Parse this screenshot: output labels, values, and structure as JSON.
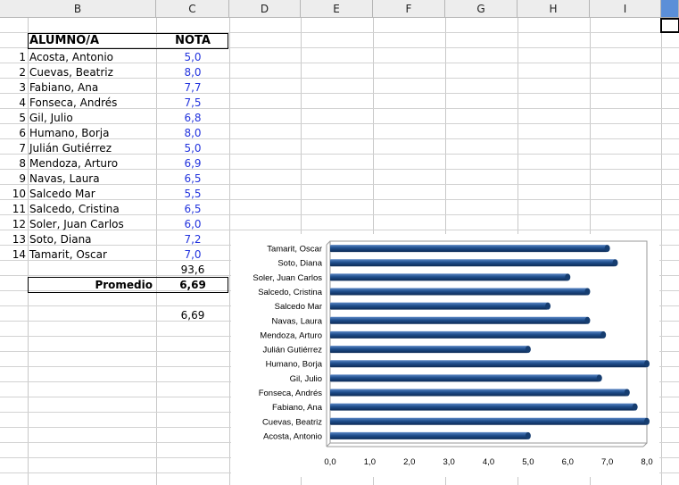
{
  "columns": [
    "B",
    "C",
    "D",
    "E",
    "F",
    "G",
    "H",
    "I"
  ],
  "table": {
    "header_name": "ALUMNO/A",
    "header_grade": "NOTA",
    "rows": [
      {
        "n": "1",
        "name": "Acosta, Antonio",
        "grade": "5,0"
      },
      {
        "n": "2",
        "name": "Cuevas, Beatriz",
        "grade": "8,0"
      },
      {
        "n": "3",
        "name": "Fabiano, Ana",
        "grade": "7,7"
      },
      {
        "n": "4",
        "name": "Fonseca, Andrés",
        "grade": "7,5"
      },
      {
        "n": "5",
        "name": "Gil, Julio",
        "grade": "6,8"
      },
      {
        "n": "6",
        "name": "Humano, Borja",
        "grade": "8,0"
      },
      {
        "n": "7",
        "name": "Julián Gutiérrez",
        "grade": "5,0"
      },
      {
        "n": "8",
        "name": "Mendoza, Arturo",
        "grade": "6,9"
      },
      {
        "n": "9",
        "name": "Navas, Laura",
        "grade": "6,5"
      },
      {
        "n": "10",
        "name": "Salcedo Mar",
        "grade": "5,5"
      },
      {
        "n": "11",
        "name": "Salcedo, Cristina",
        "grade": "6,5"
      },
      {
        "n": "12",
        "name": "Soler, Juan Carlos",
        "grade": "6,0"
      },
      {
        "n": "13",
        "name": "Soto, Diana",
        "grade": "7,2"
      },
      {
        "n": "14",
        "name": "Tamarit, Oscar",
        "grade": "7,0"
      }
    ],
    "sum": "93,6",
    "average_label": "Promedio",
    "average_value": "6,69",
    "extra_value": "6,69"
  },
  "colors": {
    "bar": "#1f4e8c",
    "grade_text": "#2233dd",
    "selected_col": "#5b8fd8"
  },
  "chart_data": {
    "type": "bar",
    "orientation": "horizontal",
    "categories": [
      "Tamarit, Oscar",
      "Soto, Diana",
      "Soler, Juan Carlos",
      "Salcedo, Cristina",
      "Salcedo Mar",
      "Navas, Laura",
      "Mendoza, Arturo",
      "Julián Gutiérrez",
      "Humano, Borja",
      "Gil, Julio",
      "Fonseca, Andrés",
      "Fabiano, Ana",
      "Cuevas, Beatriz",
      "Acosta, Antonio"
    ],
    "values": [
      7.0,
      7.2,
      6.0,
      6.5,
      5.5,
      6.5,
      6.9,
      5.0,
      8.0,
      6.8,
      7.5,
      7.7,
      8.0,
      5.0
    ],
    "xticks": [
      "0,0",
      "1,0",
      "2,0",
      "3,0",
      "4,0",
      "5,0",
      "6,0",
      "7,0",
      "8,0"
    ],
    "xlim": [
      0,
      8
    ],
    "title": "",
    "xlabel": "",
    "ylabel": ""
  }
}
